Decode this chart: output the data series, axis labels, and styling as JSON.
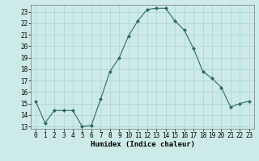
{
  "x": [
    0,
    1,
    2,
    3,
    4,
    5,
    6,
    7,
    8,
    9,
    10,
    11,
    12,
    13,
    14,
    15,
    16,
    17,
    18,
    19,
    20,
    21,
    22,
    23
  ],
  "y": [
    15.2,
    13.3,
    14.4,
    14.4,
    14.4,
    13.0,
    13.1,
    15.4,
    17.8,
    19.0,
    20.9,
    22.2,
    23.2,
    23.3,
    23.3,
    22.2,
    21.4,
    19.8,
    17.8,
    17.2,
    16.4,
    14.7,
    15.0,
    15.2
  ],
  "line_color": "#2d6b5e",
  "marker": "D",
  "marker_size": 2.0,
  "bg_color": "#cceae6",
  "grid_color": "#aad4ce",
  "xlabel": "Humidex (Indice chaleur)",
  "ylim": [
    12.8,
    23.6
  ],
  "yticks": [
    13,
    14,
    15,
    16,
    17,
    18,
    19,
    20,
    21,
    22,
    23
  ],
  "xticks": [
    0,
    1,
    2,
    3,
    4,
    5,
    6,
    7,
    8,
    9,
    10,
    11,
    12,
    13,
    14,
    15,
    16,
    17,
    18,
    19,
    20,
    21,
    22,
    23
  ],
  "xlabel_fontsize": 6.5,
  "tick_fontsize": 5.5,
  "linewidth": 0.8
}
